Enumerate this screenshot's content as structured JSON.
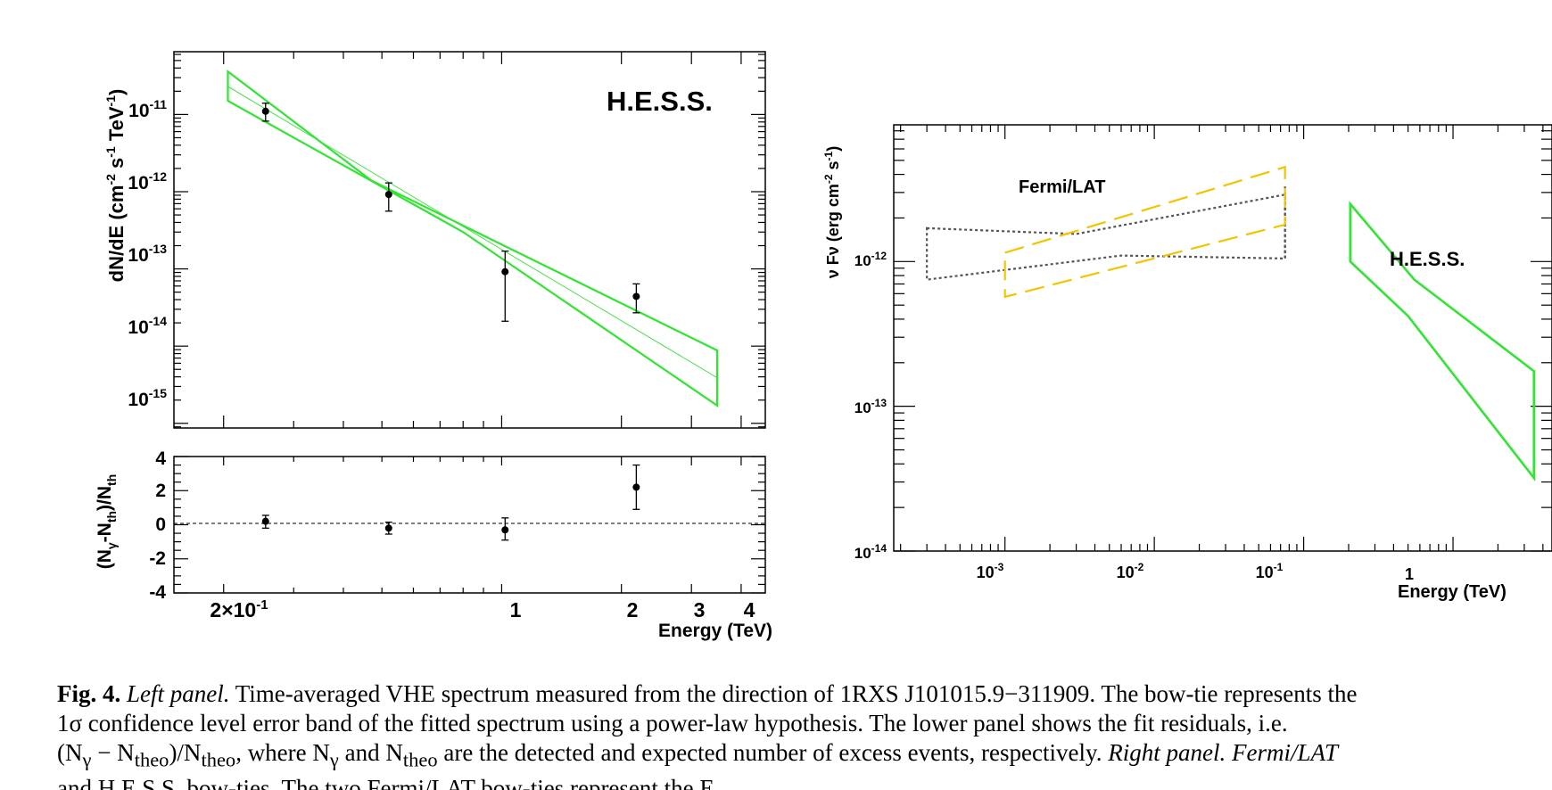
{
  "chart_data": [
    {
      "type": "line",
      "panel": "left-top",
      "annotation": "H.E.S.S.",
      "xlabel": "Energy (TeV)",
      "ylabel": "dN/dE (cm^-2 s^-1 TeV^-1)",
      "xscale": "log",
      "yscale": "log",
      "xlim": [
        0.15,
        4.6
      ],
      "ylim": [
        8.7e-16,
        6.5e-11
      ],
      "y_tick_labels": [
        "10^-11",
        "10^-12",
        "10^-13",
        "10^-14",
        "10^-15"
      ],
      "y_ticks": [
        1e-11,
        1e-12,
        1e-13,
        1e-14,
        1e-15
      ],
      "points": [
        {
          "x": 0.255,
          "y": 1.1e-11,
          "ylo": 8.2e-12,
          "yhi": 1.4e-11
        },
        {
          "x": 0.52,
          "y": 9.2e-13,
          "ylo": 5.6e-13,
          "yhi": 1.3e-12
        },
        {
          "x": 1.02,
          "y": 9.2e-14,
          "ylo": 2.1e-14,
          "yhi": 1.7e-13
        },
        {
          "x": 2.18,
          "y": 4.4e-14,
          "ylo": 2.7e-14,
          "yhi": 6.4e-14
        }
      ],
      "bowtie": {
        "color": "#33e533",
        "upper": [
          [
            0.205,
            3.6e-11
          ],
          [
            0.47,
            1.4e-12
          ],
          [
            3.48,
            8.8e-15
          ]
        ],
        "lower": [
          [
            0.205,
            1.5e-11
          ],
          [
            0.8,
            3e-13
          ],
          [
            3.48,
            1.7e-15
          ]
        ],
        "fit": [
          [
            0.205,
            2.3e-11
          ],
          [
            3.48,
            3.9e-15
          ]
        ]
      }
    },
    {
      "type": "scatter",
      "panel": "left-bottom",
      "xlabel": "Energy (TeV)",
      "ylabel": "(Nγ-Nth)/Nth",
      "xscale": "log",
      "xlim": [
        0.15,
        4.6
      ],
      "ylim": [
        -4,
        4
      ],
      "x_tick_labels": [
        {
          "x": 0.2,
          "label": "2×10^-1"
        },
        {
          "x": 1,
          "label": "1"
        },
        {
          "x": 2,
          "label": "2"
        },
        {
          "x": 3,
          "label": "3"
        },
        {
          "x": 4,
          "label": "4"
        }
      ],
      "y_tick_labels": [
        "4",
        "2",
        "0",
        "-2",
        "-4"
      ],
      "y_ticks": [
        4,
        2,
        0,
        -2,
        -4
      ],
      "points": [
        {
          "x": 0.255,
          "y": 0.2,
          "ylo": -0.2,
          "yhi": 0.55
        },
        {
          "x": 0.52,
          "y": -0.2,
          "ylo": -0.55,
          "yhi": 0.15
        },
        {
          "x": 1.02,
          "y": -0.3,
          "ylo": -0.9,
          "yhi": 0.4
        },
        {
          "x": 2.18,
          "y": 2.2,
          "ylo": 0.9,
          "yhi": 3.5
        }
      ],
      "reference_line": 0
    },
    {
      "type": "line",
      "panel": "right",
      "xlabel": "Energy (TeV)",
      "ylabel": "ν Fν (erg cm^-2 s^-1)",
      "xscale": "log",
      "yscale": "log",
      "xlim": [
        0.00018,
        4.6
      ],
      "ylim": [
        1e-14,
        8.8e-12
      ],
      "x_tick_labels": [
        {
          "x": 0.001,
          "label": "10^-3"
        },
        {
          "x": 0.01,
          "label": "10^-2"
        },
        {
          "x": 0.1,
          "label": "10^-1"
        },
        {
          "x": 1,
          "label": "1"
        }
      ],
      "y_tick_labels": [
        "10^-12",
        "10^-13",
        "10^-14"
      ],
      "y_ticks": [
        1e-12,
        1e-13,
        1e-14
      ],
      "annotations": [
        "Fermi/LAT",
        "H.E.S.S."
      ],
      "series": [
        {
          "label": "Fermi/LAT",
          "color": "#555555",
          "style": "dotted",
          "upper": [
            [
              0.0003,
              1.7e-12
            ],
            [
              0.003,
              1.55e-12
            ],
            [
              0.075,
              2.9e-12
            ]
          ],
          "lower": [
            [
              0.0003,
              7.5e-13
            ],
            [
              0.006,
              1.1e-12
            ],
            [
              0.075,
              1.05e-12
            ]
          ],
          "right_edge": [
            0.075,
            3.3e-12,
            1.05e-12
          ]
        },
        {
          "color": "#f5c400",
          "style": "dashed",
          "upper": [
            [
              0.001,
              1.15e-12
            ],
            [
              0.075,
              4.5e-12
            ]
          ],
          "lower": [
            [
              0.001,
              5.7e-13
            ],
            [
              0.075,
              1.8e-12
            ]
          ]
        },
        {
          "label": "H.E.S.S.",
          "color": "#33e533",
          "style": "solid",
          "upper": [
            [
              0.205,
              2.5e-12
            ],
            [
              0.55,
              7.5e-13
            ],
            [
              3.48,
              1.75e-13
            ]
          ],
          "lower": [
            [
              0.205,
              1e-12
            ],
            [
              0.5,
              4.2e-13
            ],
            [
              3.48,
              3.2e-14
            ]
          ]
        }
      ]
    }
  ],
  "caption": {
    "line1": {
      "fig": "Fig. 4.",
      "panel": "Left panel.",
      "text": "Time-averaged VHE spectrum measured from the direction of 1RXS J101015.9−311909. The bow-tie represents the"
    },
    "line2": {
      "text": "1σ confidence level error band of the fitted spectrum using a power-law hypothesis. The lower panel shows the fit residuals, i.e."
    },
    "line3": {
      "pre": "(N",
      "g1": "γ",
      "mid1": " − N",
      "t1": "theo",
      "mid2": ")/N",
      "t2": "theo",
      "mid3": ", where N",
      "g2": "γ",
      "mid4": " and N",
      "t3": "theo",
      "text": " are the detected and expected number of excess events, respectively.",
      "panel": "Right panel.",
      "tail": "Fermi/LAT"
    },
    "line4": {
      "text": "and H.E.S.S. bow-ties. The two Fermi/LAT bow-ties represent the E"
    }
  }
}
